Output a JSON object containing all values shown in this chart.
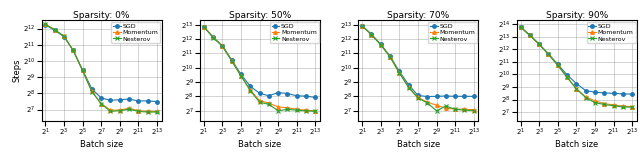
{
  "panels": [
    {
      "title": "Sparsity: 0%",
      "sgd": [
        4800,
        3800,
        2900,
        1600,
        700,
        310,
        210,
        190,
        195,
        200,
        185,
        185,
        180
      ],
      "momentum": [
        4900,
        3900,
        2950,
        1600,
        680,
        280,
        165,
        125,
        125,
        135,
        122,
        118,
        118
      ],
      "nesterov": [
        4900,
        3900,
        2950,
        1600,
        680,
        275,
        165,
        118,
        122,
        130,
        118,
        115,
        115
      ],
      "ylim_min": 6.3,
      "ylim_max": 12.5,
      "yticks": [
        7,
        8,
        9,
        10,
        11,
        12
      ]
    },
    {
      "title": "Sparsity: 50%",
      "sgd": [
        7500,
        4500,
        3000,
        1500,
        750,
        420,
        300,
        265,
        310,
        295,
        265,
        260,
        245
      ],
      "momentum": [
        7500,
        4500,
        2950,
        1450,
        700,
        350,
        210,
        185,
        155,
        148,
        138,
        132,
        128
      ],
      "nesterov": [
        7500,
        4400,
        2900,
        1430,
        695,
        340,
        195,
        175,
        128,
        138,
        132,
        128,
        125
      ],
      "ylim_min": 6.3,
      "ylim_max": 13.3,
      "yticks": [
        7,
        8,
        9,
        10,
        11,
        12,
        13
      ]
    },
    {
      "title": "Sparsity: 70%",
      "sgd": [
        7800,
        5200,
        3200,
        1800,
        860,
        450,
        270,
        255,
        258,
        262,
        258,
        258,
        258
      ],
      "momentum": [
        7800,
        5100,
        3150,
        1750,
        810,
        400,
        245,
        195,
        168,
        145,
        140,
        138,
        135
      ],
      "nesterov": [
        7800,
        5000,
        3100,
        1720,
        800,
        395,
        238,
        188,
        128,
        162,
        138,
        132,
        130
      ],
      "ylim_min": 6.3,
      "ylim_max": 13.3,
      "yticks": [
        7,
        8,
        9,
        10,
        11,
        12,
        13
      ]
    },
    {
      "title": "Sparsity: 90%",
      "sgd": [
        14000,
        9000,
        5500,
        3200,
        1800,
        1000,
        620,
        420,
        385,
        368,
        360,
        350,
        345
      ],
      "momentum": [
        14000,
        8800,
        5400,
        3100,
        1700,
        880,
        470,
        295,
        238,
        205,
        190,
        178,
        172
      ],
      "nesterov": [
        14000,
        8800,
        5400,
        3100,
        1700,
        875,
        460,
        285,
        215,
        195,
        182,
        170,
        168
      ],
      "ylim_min": 6.3,
      "ylim_max": 14.3,
      "yticks": [
        7,
        8,
        9,
        10,
        11,
        12,
        13,
        14
      ]
    }
  ],
  "x_exp": [
    1,
    2,
    3,
    4,
    5,
    6,
    7,
    8,
    9,
    10,
    11,
    12,
    13
  ],
  "xticks_exp": [
    1,
    3,
    5,
    7,
    9,
    11,
    13
  ],
  "colors": {
    "sgd": "#1f77b4",
    "momentum": "#ff7f0e",
    "nesterov": "#2ca02c"
  },
  "markers": {
    "sgd": "o",
    "momentum": "^",
    "nesterov": "x"
  },
  "marker_sizes": {
    "sgd": 2.5,
    "momentum": 2.5,
    "nesterov": 3.0
  },
  "linewidth": 0.8,
  "ylabel": "Steps",
  "xlabel": "Batch size",
  "grid": true,
  "title_fontsize": 6.5,
  "label_fontsize": 6,
  "tick_fontsize": 5,
  "legend_fontsize": 4.5
}
